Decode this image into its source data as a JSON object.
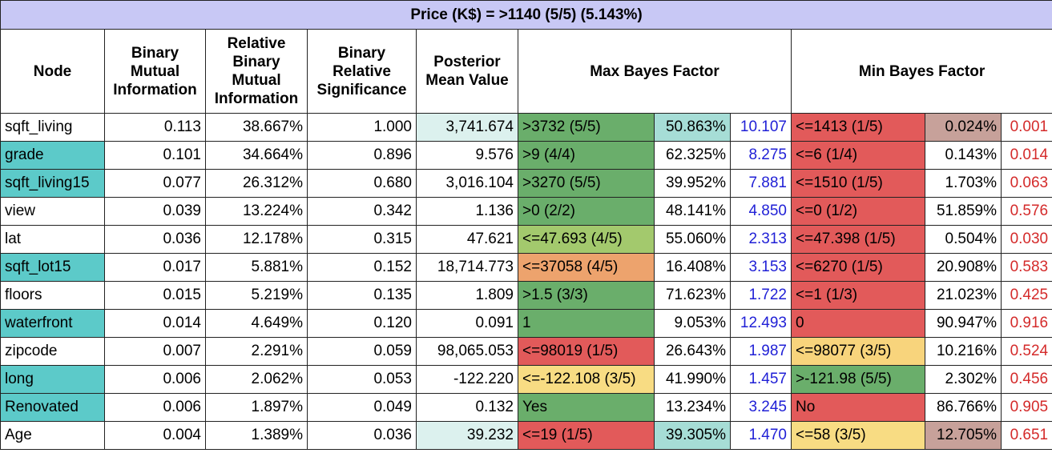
{
  "title": "Price (K$) = >1140 (5/5) (5.143%)",
  "headers": {
    "node": "Node",
    "bmi": "Binary Mutual Information",
    "rbmi": "Relative Binary Mutual Information",
    "brs": "Binary Relative Significance",
    "pmv": "Posterior Mean Value",
    "max_bf": "Max Bayes Factor",
    "min_bf": "Min Bayes Factor"
  },
  "rows": [
    {
      "node": "sqft_living",
      "bmi": "0.113",
      "rbmi": "38.667%",
      "brs": "1.000",
      "pmv": "3,741.674",
      "max_state": "&gt;3732 (5/5)",
      "max_pct": "50.863%",
      "max_bf": "10.107",
      "min_state": "&lt;=1413 (1/5)",
      "min_pct": "0.024%",
      "min_bf": "0.001"
    },
    {
      "node": "grade",
      "bmi": "0.101",
      "rbmi": "34.664%",
      "brs": "0.896",
      "pmv": "9.576",
      "max_state": "&gt;9 (4/4)",
      "max_pct": "62.325%",
      "max_bf": "8.275",
      "min_state": "&lt;=6 (1/4)",
      "min_pct": "0.143%",
      "min_bf": "0.014"
    },
    {
      "node": "sqft_living15",
      "bmi": "0.077",
      "rbmi": "26.312%",
      "brs": "0.680",
      "pmv": "3,016.104",
      "max_state": "&gt;3270 (5/5)",
      "max_pct": "39.952%",
      "max_bf": "7.881",
      "min_state": "&lt;=1510 (1/5)",
      "min_pct": "1.703%",
      "min_bf": "0.063"
    },
    {
      "node": "view",
      "bmi": "0.039",
      "rbmi": "13.224%",
      "brs": "0.342",
      "pmv": "1.136",
      "max_state": "&gt;0 (2/2)",
      "max_pct": "48.141%",
      "max_bf": "4.850",
      "min_state": "&lt;=0 (1/2)",
      "min_pct": "51.859%",
      "min_bf": "0.576"
    },
    {
      "node": "lat",
      "bmi": "0.036",
      "rbmi": "12.178%",
      "brs": "0.315",
      "pmv": "47.621",
      "max_state": "&lt;=47.693 (4/5)",
      "max_pct": "55.060%",
      "max_bf": "2.313",
      "min_state": "&lt;=47.398 (1/5)",
      "min_pct": "0.504%",
      "min_bf": "0.030"
    },
    {
      "node": "sqft_lot15",
      "bmi": "0.017",
      "rbmi": "5.881%",
      "brs": "0.152",
      "pmv": "18,714.773",
      "max_state": "&lt;=37058 (4/5)",
      "max_pct": "16.408%",
      "max_bf": "3.153",
      "min_state": "&lt;=6270 (1/5)",
      "min_pct": "20.908%",
      "min_bf": "0.583"
    },
    {
      "node": "floors",
      "bmi": "0.015",
      "rbmi": "5.219%",
      "brs": "0.135",
      "pmv": "1.809",
      "max_state": "&gt;1.5 (3/3)",
      "max_pct": "71.623%",
      "max_bf": "1.722",
      "min_state": "&lt;=1 (1/3)",
      "min_pct": "21.023%",
      "min_bf": "0.425"
    },
    {
      "node": "waterfront",
      "bmi": "0.014",
      "rbmi": "4.649%",
      "brs": "0.120",
      "pmv": "0.091",
      "max_state": "1",
      "max_pct": "9.053%",
      "max_bf": "12.493",
      "min_state": "0",
      "min_pct": "90.947%",
      "min_bf": "0.916"
    },
    {
      "node": "zipcode",
      "bmi": "0.007",
      "rbmi": "2.291%",
      "brs": "0.059",
      "pmv": "98,065.053",
      "max_state": "&lt;=98019 (1/5)",
      "max_pct": "26.643%",
      "max_bf": "1.987",
      "min_state": "&lt;=98077 (3/5)",
      "min_pct": "10.216%",
      "min_bf": "0.524"
    },
    {
      "node": "long",
      "bmi": "0.006",
      "rbmi": "2.062%",
      "brs": "0.053",
      "pmv": "-122.220",
      "max_state": "&lt;=-122.108 (3/5)",
      "max_pct": "41.990%",
      "max_bf": "1.457",
      "min_state": "&gt;-121.98 (5/5)",
      "min_pct": "2.302%",
      "min_bf": "0.456"
    },
    {
      "node": "Renovated",
      "bmi": "0.006",
      "rbmi": "1.897%",
      "brs": "0.049",
      "pmv": "0.132",
      "max_state": "Yes",
      "max_pct": "13.234%",
      "max_bf": "3.245",
      "min_state": "No",
      "min_pct": "86.766%",
      "min_bf": "0.905"
    },
    {
      "node": "Age",
      "bmi": "0.004",
      "rbmi": "1.389%",
      "brs": "0.036",
      "pmv": "39.232",
      "max_state": "&lt;=19 (1/5)",
      "max_pct": "39.305%",
      "max_bf": "1.470",
      "min_state": "&lt;=58 (3/5)",
      "min_pct": "12.705%",
      "min_bf": "0.651"
    }
  ],
  "colors": {
    "title_bg": "#c8c8f5",
    "teal": "#5ccac9",
    "green_dark": "#6aae6b",
    "green_light": "#a3c96d",
    "orange": "#eda36d",
    "yellow": "#f8dc83",
    "red": "#e25a5a",
    "mauve": "#c7a19a",
    "light_teal": "#dcf1ee",
    "mint": "#a6ddd6",
    "blue_text": "#1f1fd6",
    "red_text": "#d42a2a"
  }
}
